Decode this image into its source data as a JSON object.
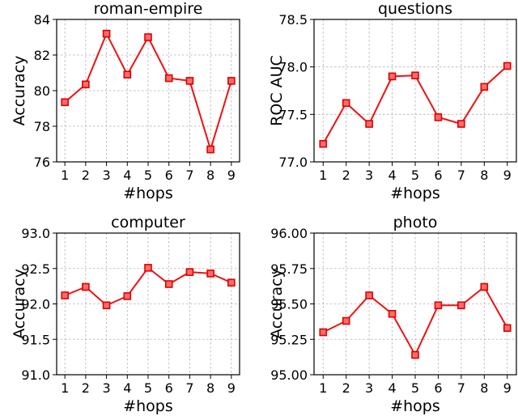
{
  "chart_data": [
    {
      "type": "line",
      "title": "roman-empire",
      "xlabel": "#hops",
      "ylabel": "Accuracy",
      "x": [
        1,
        2,
        3,
        4,
        5,
        6,
        7,
        8,
        9
      ],
      "values": [
        79.35,
        80.35,
        83.2,
        80.9,
        83.0,
        80.7,
        80.55,
        76.7,
        80.55
      ],
      "ylim": [
        76,
        84
      ],
      "yticks": [
        "76",
        "78",
        "80",
        "82",
        "84"
      ],
      "grid": true,
      "color": "#ee1111"
    },
    {
      "type": "line",
      "title": "questions",
      "xlabel": "#hops",
      "ylabel": "ROC AUC",
      "x": [
        1,
        2,
        3,
        4,
        5,
        6,
        7,
        8,
        9
      ],
      "values": [
        77.19,
        77.62,
        77.4,
        77.9,
        77.91,
        77.47,
        77.4,
        77.79,
        78.01
      ],
      "ylim": [
        77.0,
        78.5
      ],
      "yticks": [
        "77.0",
        "77.5",
        "78.0",
        "78.5"
      ],
      "grid": true,
      "color": "#ee1111"
    },
    {
      "type": "line",
      "title": "computer",
      "xlabel": "#hops",
      "ylabel": "Accuracy",
      "x": [
        1,
        2,
        3,
        4,
        5,
        6,
        7,
        8,
        9
      ],
      "values": [
        92.12,
        92.24,
        91.98,
        92.11,
        92.51,
        92.28,
        92.45,
        92.43,
        92.3
      ],
      "ylim": [
        91.0,
        93.0
      ],
      "yticks": [
        "91.0",
        "91.5",
        "92.0",
        "92.5",
        "93.0"
      ],
      "grid": true,
      "color": "#ee1111"
    },
    {
      "type": "line",
      "title": "photo",
      "xlabel": "#hops",
      "ylabel": "Accuracy",
      "x": [
        1,
        2,
        3,
        4,
        5,
        6,
        7,
        8,
        9
      ],
      "values": [
        95.3,
        95.38,
        95.56,
        95.43,
        95.14,
        95.49,
        95.49,
        95.62,
        95.33
      ],
      "ylim": [
        95.0,
        96.0
      ],
      "yticks": [
        "95.00",
        "95.25",
        "95.50",
        "95.75",
        "96.00"
      ],
      "grid": true,
      "color": "#ee1111"
    }
  ]
}
